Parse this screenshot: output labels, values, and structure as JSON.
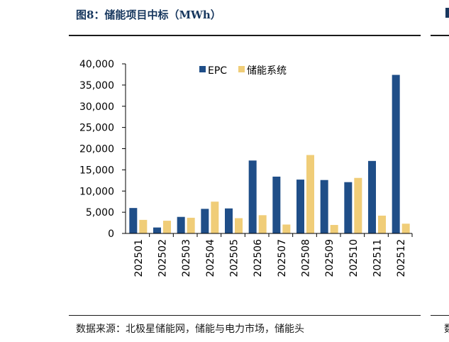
{
  "figure": {
    "title": "图8：储能项目中标（MWh）",
    "source": "数据来源：北极星储能网，储能与电力市场，储能头"
  },
  "colors": {
    "epc": "#1f4e88",
    "storage": "#f0cd78",
    "title": "#17375e"
  },
  "chart_data": {
    "type": "bar",
    "title": "",
    "xlabel": "",
    "ylabel": "",
    "categories": [
      "202501",
      "202502",
      "202503",
      "202504",
      "202505",
      "202506",
      "202507",
      "202508",
      "202509",
      "202510",
      "202511",
      "202512"
    ],
    "series": [
      {
        "name": "EPC",
        "values": [
          6000,
          1400,
          3900,
          5800,
          5900,
          17200,
          13400,
          12700,
          12600,
          12100,
          17100,
          37400
        ]
      },
      {
        "name": "储能系统",
        "values": [
          3200,
          3000,
          3700,
          7500,
          3600,
          4300,
          2100,
          18500,
          2000,
          13100,
          4200,
          2300
        ]
      }
    ],
    "ylim": [
      0,
      40000
    ],
    "yticks": [
      "0",
      "5,000",
      "10,000",
      "15,000",
      "20,000",
      "25,000",
      "30,000",
      "35,000",
      "40,000"
    ],
    "grid": false,
    "legend": "top-center"
  }
}
